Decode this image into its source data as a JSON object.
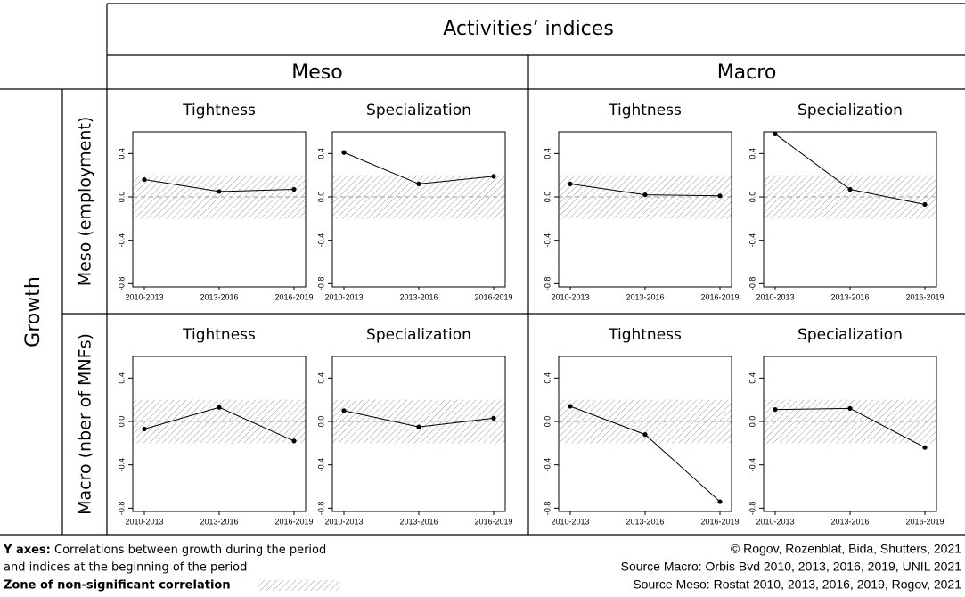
{
  "header": {
    "title": "Activities’ indices",
    "columns": [
      "Meso",
      "Macro"
    ],
    "row_group": "Growth",
    "rows": [
      "Meso (employment)",
      "Macro (nber of MNFs)"
    ]
  },
  "chart_data": [
    {
      "type": "line",
      "title": "Tightness",
      "categories": [
        "2010-2013",
        "2013-2016",
        "2016-2019"
      ],
      "values": [
        0.16,
        0.05,
        0.07
      ],
      "color": "#000000",
      "ylim": [
        -0.83,
        0.6
      ],
      "yticks": [
        -0.8,
        -0.4,
        {
          "value": 0,
          "label": "0.0"
        },
        0.4
      ],
      "shaded_band": [
        -0.2,
        0.2
      ]
    },
    {
      "type": "line",
      "title": "Specialization",
      "categories": [
        "2010-2013",
        "2013-2016",
        "2016-2019"
      ],
      "values": [
        0.41,
        0.12,
        0.19
      ],
      "color": "#000000",
      "ylim": [
        -0.83,
        0.6
      ],
      "yticks": [
        -0.8,
        -0.4,
        {
          "value": 0,
          "label": "0.0"
        },
        0.4
      ],
      "shaded_band": [
        -0.2,
        0.2
      ]
    },
    {
      "type": "line",
      "title": "Tightness",
      "categories": [
        "2010-2013",
        "2013-2016",
        "2016-2019"
      ],
      "values": [
        0.12,
        0.02,
        0.01
      ],
      "color": "#000000",
      "ylim": [
        -0.83,
        0.6
      ],
      "yticks": [
        -0.8,
        -0.4,
        {
          "value": 0,
          "label": "0.0"
        },
        0.4
      ],
      "shaded_band": [
        -0.2,
        0.2
      ]
    },
    {
      "type": "line",
      "title": "Specialization",
      "categories": [
        "2010-2013",
        "2013-2016",
        "2016-2019"
      ],
      "values": [
        0.58,
        0.07,
        -0.07
      ],
      "color": "#000000",
      "ylim": [
        -0.83,
        0.6
      ],
      "yticks": [
        -0.8,
        -0.4,
        {
          "value": 0,
          "label": "0.0"
        },
        0.4
      ],
      "shaded_band": [
        -0.2,
        0.2
      ]
    },
    {
      "type": "line",
      "title": "Tightness",
      "categories": [
        "2010-2013",
        "2013-2016",
        "2016-2019"
      ],
      "values": [
        -0.07,
        0.13,
        -0.18
      ],
      "color": "#000000",
      "ylim": [
        -0.83,
        0.6
      ],
      "yticks": [
        -0.8,
        -0.4,
        {
          "value": 0,
          "label": "0.0"
        },
        0.4
      ],
      "shaded_band": [
        -0.2,
        0.2
      ]
    },
    {
      "type": "line",
      "title": "Specialization",
      "categories": [
        "2010-2013",
        "2013-2016",
        "2016-2019"
      ],
      "values": [
        0.1,
        -0.05,
        0.03
      ],
      "color": "#000000",
      "ylim": [
        -0.83,
        0.6
      ],
      "yticks": [
        -0.8,
        -0.4,
        {
          "value": 0,
          "label": "0.0"
        },
        0.4
      ],
      "shaded_band": [
        -0.2,
        0.2
      ]
    },
    {
      "type": "line",
      "title": "Tightness",
      "categories": [
        "2010-2013",
        "2013-2016",
        "2016-2019"
      ],
      "values": [
        0.14,
        -0.12,
        -0.74
      ],
      "color": "#000000",
      "ylim": [
        -0.83,
        0.6
      ],
      "yticks": [
        -0.8,
        -0.4,
        {
          "value": 0,
          "label": "0.0"
        },
        0.4
      ],
      "shaded_band": [
        -0.2,
        0.2
      ]
    },
    {
      "type": "line",
      "title": "Specialization",
      "categories": [
        "2010-2013",
        "2013-2016",
        "2016-2019"
      ],
      "values": [
        0.11,
        0.12,
        -0.24
      ],
      "color": "#000000",
      "ylim": [
        -0.83,
        0.6
      ],
      "yticks": [
        -0.8,
        -0.4,
        {
          "value": 0,
          "label": "0.0"
        },
        0.4
      ],
      "shaded_band": [
        -0.2,
        0.2
      ]
    }
  ],
  "footer": {
    "y_axes_label": "Y axes:",
    "y_axes_text": [
      "Correlations between growth during the period",
      "and indices at the beginning of the period"
    ],
    "zone_label": "Zone of non-significant correlation",
    "credits": [
      "© Rogov, Rozenblat, Bida, Shutters, 2021",
      "Source Macro: Orbis Bvd 2010, 2013, 2016, 2019, UNIL 2021",
      "Source Meso: Rostat 2010, 2013, 2016, 2019, Rogov, 2021"
    ]
  }
}
